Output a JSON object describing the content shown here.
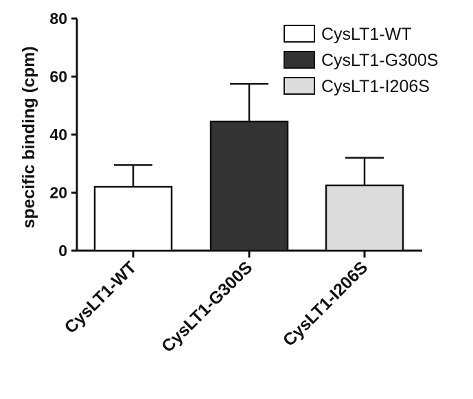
{
  "chart_data": {
    "type": "bar",
    "title": "",
    "xlabel": "",
    "ylabel": "specific binding (cpm)",
    "ylim": [
      0,
      80
    ],
    "yticks": [
      0,
      20,
      40,
      60,
      80
    ],
    "grid": false,
    "legend_position": "top-right",
    "categories": [
      "CysLT1-WT",
      "CysLT1-G300S",
      "CysLT1-I206S"
    ],
    "values": [
      22,
      44.5,
      22.5
    ],
    "error_upper": [
      7.5,
      13,
      9.5
    ],
    "series": [
      {
        "name": "CysLT1-WT",
        "fill": "#ffffff"
      },
      {
        "name": "CysLT1-G300S",
        "fill": "#333333"
      },
      {
        "name": "CysLT1-I206S",
        "fill": "#dcdcdc"
      }
    ],
    "colors": {
      "axis": "#111111",
      "bar_outline": "#111111",
      "background": "#ffffff"
    }
  }
}
